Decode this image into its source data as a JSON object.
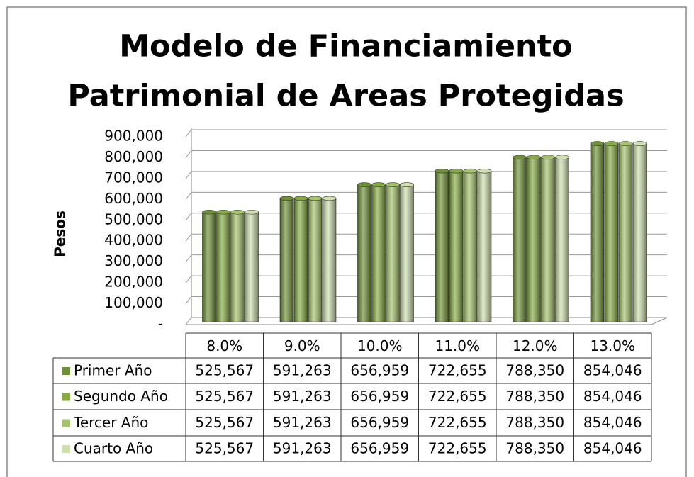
{
  "chart_data": {
    "type": "bar",
    "title": [
      "Modelo de Financiamiento",
      "Patrimonial de Areas Protegidas"
    ],
    "y_label": "Pesos",
    "categories": [
      "8.0%",
      "9.0%",
      "10.0%",
      "11.0%",
      "12.0%",
      "13.0%"
    ],
    "series": [
      {
        "name": "Primer Año",
        "color": "#6f9136",
        "values": [
          525567,
          591263,
          656959,
          722655,
          788350,
          854046
        ],
        "value_labels": [
          "525,567",
          "591,263",
          "656,959",
          "722,655",
          "788,350",
          "854,046"
        ]
      },
      {
        "name": "Segundo Año",
        "color": "#85ab42",
        "values": [
          525567,
          591263,
          656959,
          722655,
          788350,
          854046
        ],
        "value_labels": [
          "525,567",
          "591,263",
          "656,959",
          "722,655",
          "788,350",
          "854,046"
        ]
      },
      {
        "name": "Tercer Año",
        "color": "#a6c46c",
        "values": [
          525567,
          591263,
          656959,
          722655,
          788350,
          854046
        ],
        "value_labels": [
          "525,567",
          "591,263",
          "656,959",
          "722,655",
          "788,350",
          "854,046"
        ]
      },
      {
        "name": "Cuarto Año",
        "color": "#cfe0ae",
        "values": [
          525567,
          591263,
          656959,
          722655,
          788350,
          854046
        ],
        "value_labels": [
          "525,567",
          "591,263",
          "656,959",
          "722,655",
          "788,350",
          "854,046"
        ]
      }
    ],
    "ylim": [
      0,
      900000
    ],
    "yticks": [
      {
        "value": 0,
        "label": "-"
      },
      {
        "value": 100000,
        "label": "100,000"
      },
      {
        "value": 200000,
        "label": "200,000"
      },
      {
        "value": 300000,
        "label": "300,000"
      },
      {
        "value": 400000,
        "label": "400,000"
      },
      {
        "value": 500000,
        "label": "500,000"
      },
      {
        "value": 600000,
        "label": "600,000"
      },
      {
        "value": 700000,
        "label": "700,000"
      },
      {
        "value": 800000,
        "label": "800,000"
      },
      {
        "value": 900000,
        "label": "900,000"
      }
    ],
    "grid": true
  }
}
